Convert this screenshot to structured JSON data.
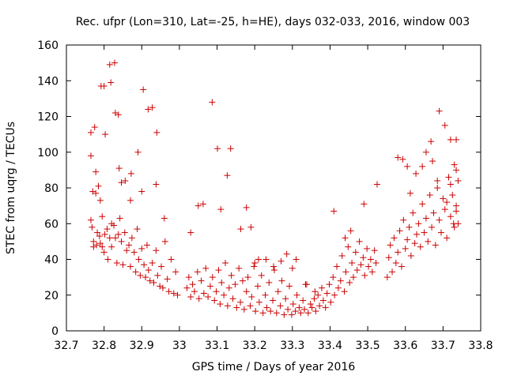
{
  "chart_data": {
    "type": "scatter",
    "title": "Rec. ufpr (Lon=310, Lat=-25, h=HE), days 032-033, 2016, window 003",
    "xlabel": "GPS time / Days of year 2016",
    "ylabel": "STEC from uqrg / TECUs",
    "xlim": [
      32.7,
      33.8
    ],
    "ylim": [
      0,
      160
    ],
    "xticks": [
      "32.7",
      "32.8",
      "32.9",
      "33",
      "33.1",
      "33.2",
      "33.3",
      "33.4",
      "33.5",
      "33.6",
      "33.7",
      "33.8"
    ],
    "yticks": [
      "0",
      "20",
      "40",
      "60",
      "80",
      "100",
      "120",
      "140",
      "160"
    ],
    "grid": false,
    "marker": "+",
    "marker_color": "#cc0000",
    "points": [
      [
        32.765,
        98
      ],
      [
        32.765,
        111
      ],
      [
        32.775,
        114
      ],
      [
        32.778,
        89
      ],
      [
        32.77,
        78
      ],
      [
        32.778,
        77
      ],
      [
        32.785,
        81
      ],
      [
        32.79,
        73
      ],
      [
        32.792,
        137
      ],
      [
        32.8,
        137
      ],
      [
        32.803,
        110
      ],
      [
        32.815,
        149
      ],
      [
        32.818,
        139
      ],
      [
        32.828,
        150
      ],
      [
        32.83,
        122
      ],
      [
        32.838,
        121
      ],
      [
        32.84,
        91
      ],
      [
        32.846,
        83
      ],
      [
        32.856,
        84
      ],
      [
        32.87,
        73
      ],
      [
        32.872,
        88
      ],
      [
        32.89,
        100
      ],
      [
        32.9,
        78
      ],
      [
        32.904,
        135
      ],
      [
        32.917,
        124
      ],
      [
        32.928,
        125
      ],
      [
        32.94,
        111
      ],
      [
        32.938,
        82
      ],
      [
        32.96,
        63
      ],
      [
        33.03,
        55
      ],
      [
        33.05,
        70
      ],
      [
        33.063,
        71
      ],
      [
        33.087,
        128
      ],
      [
        33.101,
        102
      ],
      [
        33.11,
        68
      ],
      [
        33.127,
        87
      ],
      [
        33.136,
        102
      ],
      [
        33.163,
        57
      ],
      [
        33.178,
        69
      ],
      [
        33.19,
        58
      ],
      [
        33.41,
        67
      ],
      [
        33.44,
        52
      ],
      [
        33.455,
        56
      ],
      [
        33.49,
        71
      ],
      [
        33.525,
        82
      ],
      [
        33.58,
        97
      ],
      [
        33.593,
        96
      ],
      [
        33.605,
        92
      ],
      [
        33.613,
        77
      ],
      [
        33.628,
        88
      ],
      [
        33.645,
        92
      ],
      [
        33.655,
        100
      ],
      [
        33.668,
        106
      ],
      [
        33.672,
        95
      ],
      [
        33.685,
        84
      ],
      [
        33.69,
        123
      ],
      [
        33.705,
        115
      ],
      [
        33.72,
        107
      ],
      [
        33.735,
        107
      ],
      [
        33.73,
        93
      ],
      [
        33.735,
        90
      ],
      [
        33.72,
        82
      ],
      [
        33.71,
        72
      ],
      [
        33.735,
        67
      ],
      [
        33.728,
        60
      ],
      [
        33.74,
        60
      ],
      [
        32.765,
        62
      ],
      [
        32.768,
        58
      ],
      [
        32.772,
        50
      ],
      [
        32.772,
        47
      ],
      [
        32.78,
        48
      ],
      [
        32.782,
        55
      ],
      [
        32.788,
        53
      ],
      [
        32.79,
        49
      ],
      [
        32.795,
        64
      ],
      [
        32.795,
        47
      ],
      [
        32.8,
        44
      ],
      [
        32.802,
        54
      ],
      [
        32.808,
        57
      ],
      [
        32.81,
        40
      ],
      [
        32.815,
        52
      ],
      [
        32.82,
        60
      ],
      [
        32.82,
        47
      ],
      [
        32.826,
        59
      ],
      [
        32.83,
        52
      ],
      [
        32.834,
        38
      ],
      [
        32.838,
        54
      ],
      [
        32.842,
        63
      ],
      [
        32.846,
        50
      ],
      [
        32.85,
        37
      ],
      [
        32.855,
        55
      ],
      [
        32.86,
        45
      ],
      [
        32.866,
        48
      ],
      [
        32.87,
        36
      ],
      [
        32.874,
        52
      ],
      [
        32.88,
        44
      ],
      [
        32.884,
        33
      ],
      [
        32.888,
        57
      ],
      [
        32.892,
        40
      ],
      [
        32.896,
        31
      ],
      [
        32.9,
        46
      ],
      [
        32.906,
        37
      ],
      [
        32.91,
        30
      ],
      [
        32.914,
        48
      ],
      [
        32.918,
        34
      ],
      [
        32.922,
        28
      ],
      [
        32.928,
        38
      ],
      [
        32.932,
        27
      ],
      [
        32.938,
        45
      ],
      [
        32.942,
        31
      ],
      [
        32.948,
        25
      ],
      [
        32.952,
        36
      ],
      [
        32.956,
        24
      ],
      [
        32.962,
        50
      ],
      [
        32.968,
        29
      ],
      [
        32.972,
        22
      ],
      [
        32.978,
        40
      ],
      [
        32.985,
        21
      ],
      [
        32.99,
        33
      ],
      [
        32.995,
        20
      ],
      [
        33.02,
        24
      ],
      [
        33.025,
        30
      ],
      [
        33.03,
        19
      ],
      [
        33.035,
        26
      ],
      [
        33.04,
        22
      ],
      [
        33.048,
        33
      ],
      [
        33.052,
        18
      ],
      [
        33.058,
        28
      ],
      [
        33.065,
        21
      ],
      [
        33.07,
        35
      ],
      [
        33.076,
        19
      ],
      [
        33.082,
        25
      ],
      [
        33.088,
        30
      ],
      [
        33.093,
        17
      ],
      [
        33.098,
        22
      ],
      [
        33.104,
        34
      ],
      [
        33.108,
        15
      ],
      [
        33.112,
        27
      ],
      [
        33.118,
        20
      ],
      [
        33.122,
        38
      ],
      [
        33.128,
        14
      ],
      [
        33.132,
        24
      ],
      [
        33.138,
        31
      ],
      [
        33.142,
        18
      ],
      [
        33.148,
        26
      ],
      [
        33.152,
        13
      ],
      [
        33.158,
        35
      ],
      [
        33.162,
        16
      ],
      [
        33.168,
        28
      ],
      [
        33.172,
        12
      ],
      [
        33.178,
        22
      ],
      [
        33.182,
        30
      ],
      [
        33.188,
        14
      ],
      [
        33.192,
        19
      ],
      [
        33.198,
        36
      ],
      [
        33.202,
        11
      ],
      [
        33.208,
        25
      ],
      [
        33.212,
        16
      ],
      [
        33.218,
        31
      ],
      [
        33.222,
        10
      ],
      [
        33.228,
        20
      ],
      [
        33.232,
        13
      ],
      [
        33.238,
        27
      ],
      [
        33.242,
        11
      ],
      [
        33.248,
        17
      ],
      [
        33.252,
        34
      ],
      [
        33.258,
        10
      ],
      [
        33.262,
        22
      ],
      [
        33.268,
        14
      ],
      [
        33.272,
        28
      ],
      [
        33.278,
        9
      ],
      [
        33.282,
        18
      ],
      [
        33.288,
        12
      ],
      [
        33.292,
        25
      ],
      [
        33.298,
        9
      ],
      [
        33.302,
        15
      ],
      [
        33.308,
        11
      ],
      [
        33.312,
        20
      ],
      [
        33.318,
        13
      ],
      [
        33.322,
        10
      ],
      [
        33.328,
        17
      ],
      [
        33.332,
        12
      ],
      [
        33.338,
        26
      ],
      [
        33.342,
        10
      ],
      [
        33.348,
        15
      ],
      [
        33.352,
        13
      ],
      [
        33.358,
        18
      ],
      [
        33.362,
        11
      ],
      [
        33.368,
        20
      ],
      [
        33.372,
        14
      ],
      [
        33.378,
        24
      ],
      [
        33.382,
        17
      ],
      [
        33.388,
        13
      ],
      [
        33.392,
        21
      ],
      [
        33.398,
        26
      ],
      [
        33.402,
        16
      ],
      [
        33.408,
        30
      ],
      [
        33.412,
        20
      ],
      [
        33.418,
        36
      ],
      [
        33.422,
        24
      ],
      [
        33.428,
        28
      ],
      [
        33.432,
        42
      ],
      [
        33.438,
        22
      ],
      [
        33.442,
        33
      ],
      [
        33.448,
        47
      ],
      [
        33.452,
        27
      ],
      [
        33.458,
        38
      ],
      [
        33.462,
        30
      ],
      [
        33.468,
        44
      ],
      [
        33.472,
        34
      ],
      [
        33.478,
        50
      ],
      [
        33.482,
        37
      ],
      [
        33.488,
        41
      ],
      [
        33.492,
        31
      ],
      [
        33.498,
        46
      ],
      [
        33.502,
        36
      ],
      [
        33.508,
        40
      ],
      [
        33.512,
        33
      ],
      [
        33.518,
        45
      ],
      [
        33.522,
        38
      ],
      [
        33.552,
        30
      ],
      [
        33.556,
        41
      ],
      [
        33.56,
        48
      ],
      [
        33.565,
        33
      ],
      [
        33.57,
        52
      ],
      [
        33.575,
        38
      ],
      [
        33.58,
        44
      ],
      [
        33.585,
        56
      ],
      [
        33.59,
        36
      ],
      [
        33.595,
        62
      ],
      [
        33.6,
        46
      ],
      [
        33.605,
        51
      ],
      [
        33.61,
        58
      ],
      [
        33.615,
        42
      ],
      [
        33.62,
        66
      ],
      [
        33.625,
        49
      ],
      [
        33.63,
        54
      ],
      [
        33.635,
        60
      ],
      [
        33.64,
        47
      ],
      [
        33.645,
        71
      ],
      [
        33.65,
        55
      ],
      [
        33.655,
        63
      ],
      [
        33.66,
        50
      ],
      [
        33.665,
        76
      ],
      [
        33.67,
        58
      ],
      [
        33.675,
        66
      ],
      [
        33.68,
        48
      ],
      [
        33.685,
        80
      ],
      [
        33.69,
        62
      ],
      [
        33.695,
        55
      ],
      [
        33.7,
        74
      ],
      [
        33.705,
        68
      ],
      [
        33.71,
        52
      ],
      [
        33.715,
        86
      ],
      [
        33.72,
        64
      ],
      [
        33.725,
        76
      ],
      [
        33.73,
        58
      ],
      [
        33.735,
        70
      ],
      [
        33.74,
        84
      ],
      [
        33.2,
        38
      ],
      [
        33.21,
        40
      ],
      [
        33.25,
        36
      ],
      [
        33.23,
        40
      ],
      [
        33.27,
        39
      ],
      [
        33.285,
        43
      ],
      [
        33.31,
        40
      ],
      [
        33.3,
        35
      ],
      [
        33.335,
        26
      ],
      [
        33.36,
        22
      ]
    ]
  }
}
